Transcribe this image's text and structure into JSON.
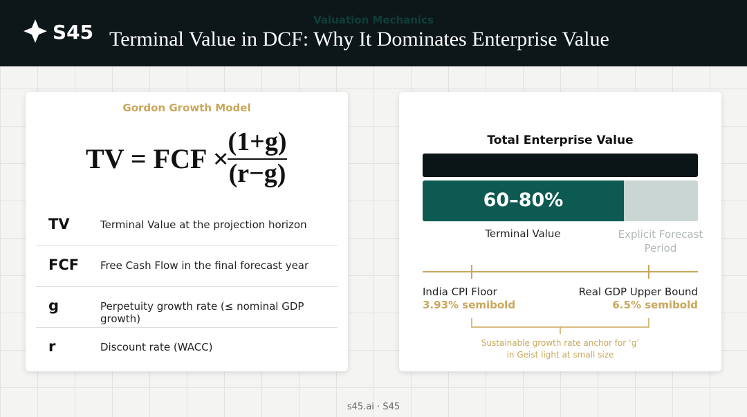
{
  "header": {
    "brand": "S45",
    "kicker": "Valuation Mechanics",
    "title": "Terminal Value in DCF: Why It Dominates Enterprise Value"
  },
  "formula_card": {
    "label": "Gordon Growth Model",
    "formula": {
      "lhs": "TV = FCF ×",
      "numerator": "(1+g)",
      "denominator": "(r−g)"
    },
    "definitions": [
      {
        "symbol": "TV",
        "text": "Terminal Value at the projection horizon"
      },
      {
        "symbol": "FCF",
        "text": "Free Cash Flow in the final forecast year"
      },
      {
        "symbol": "g",
        "text": "Perpetuity growth rate (≤ nominal GDP growth)"
      },
      {
        "symbol": "r",
        "text": "Discount rate (WACC)"
      }
    ]
  },
  "value_card": {
    "title": "Total Enterprise Value",
    "share_label": "60–80%",
    "terminal_label": "Terminal Value",
    "explicit_label": "Explicit Forecast Period",
    "range": {
      "low_label": "India CPI Floor",
      "low_value": "3.93% semibold",
      "high_label": "Real GDP Upper Bound",
      "high_value": "6.5% semibold",
      "note": [
        "Sustainable growth rate anchor for ‘g’",
        "in Geist light at small size"
      ]
    }
  },
  "footer": "s45.ai · S45"
}
